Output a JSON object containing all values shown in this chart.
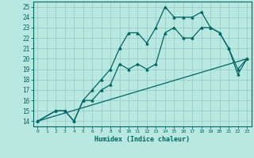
{
  "title": "",
  "xlabel": "Humidex (Indice chaleur)",
  "bg_color": "#b8e8e0",
  "grid_color": "#99cccc",
  "line_color": "#006666",
  "xlim": [
    -0.5,
    23.5
  ],
  "ylim": [
    13.5,
    25.5
  ],
  "xticks": [
    0,
    1,
    2,
    3,
    4,
    5,
    6,
    7,
    8,
    9,
    10,
    11,
    12,
    13,
    14,
    15,
    16,
    17,
    18,
    19,
    20,
    21,
    22,
    23
  ],
  "yticks": [
    14,
    15,
    16,
    17,
    18,
    19,
    20,
    21,
    22,
    23,
    24,
    25
  ],
  "line1_x": [
    0,
    2,
    3,
    4,
    5,
    6,
    7,
    8,
    9,
    10,
    11,
    12,
    13,
    14,
    15,
    16,
    17,
    18,
    19,
    20,
    21,
    22,
    23
  ],
  "line1_y": [
    14,
    15,
    15,
    14,
    16,
    17,
    18,
    19,
    21,
    22.5,
    22.5,
    21.5,
    23,
    25,
    24,
    24,
    24,
    24.5,
    23,
    22.5,
    21,
    19,
    20
  ],
  "line2_x": [
    0,
    2,
    3,
    4,
    5,
    6,
    7,
    8,
    9,
    10,
    11,
    12,
    13,
    14,
    15,
    16,
    17,
    18,
    19,
    20,
    21,
    22,
    23
  ],
  "line2_y": [
    14,
    15,
    15,
    14,
    16,
    16,
    17,
    17.5,
    19.5,
    19,
    19.5,
    19,
    19.5,
    22.5,
    23,
    22,
    22,
    23,
    23,
    22.5,
    21,
    18.5,
    20
  ],
  "line3_x": [
    0,
    23
  ],
  "line3_y": [
    14,
    20
  ]
}
